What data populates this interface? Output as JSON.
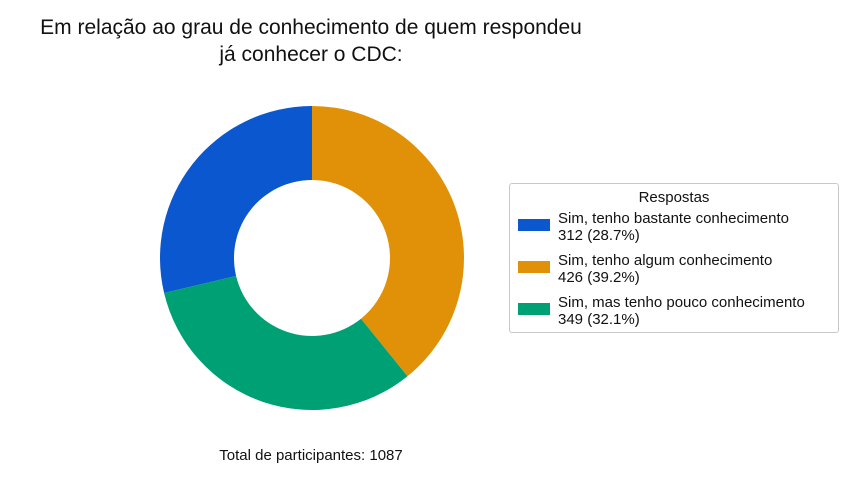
{
  "chart_data": {
    "type": "pie",
    "donut": true,
    "title_lines": [
      "Em relação ao grau de conhecimento de quem respondeu",
      "já conhecer o CDC:"
    ],
    "legend_title": "Respostas",
    "legend_position": "right",
    "total_label": "Total de participantes: 1087",
    "total": 1087,
    "slices": [
      {
        "label": "Sim, tenho bastante conhecimento",
        "value": 312,
        "value_label": "312 (28.7%)",
        "percent": 28.7,
        "color": "#0b57d0"
      },
      {
        "label": "Sim, tenho algum conhecimento",
        "value": 426,
        "value_label": "426 (39.2%)",
        "percent": 39.2,
        "color": "#e09108"
      },
      {
        "label": "Sim, mas tenho pouco conhecimento",
        "value": 349,
        "value_label": "349 (32.1%)",
        "percent": 32.1,
        "color": "#00a075"
      }
    ]
  }
}
